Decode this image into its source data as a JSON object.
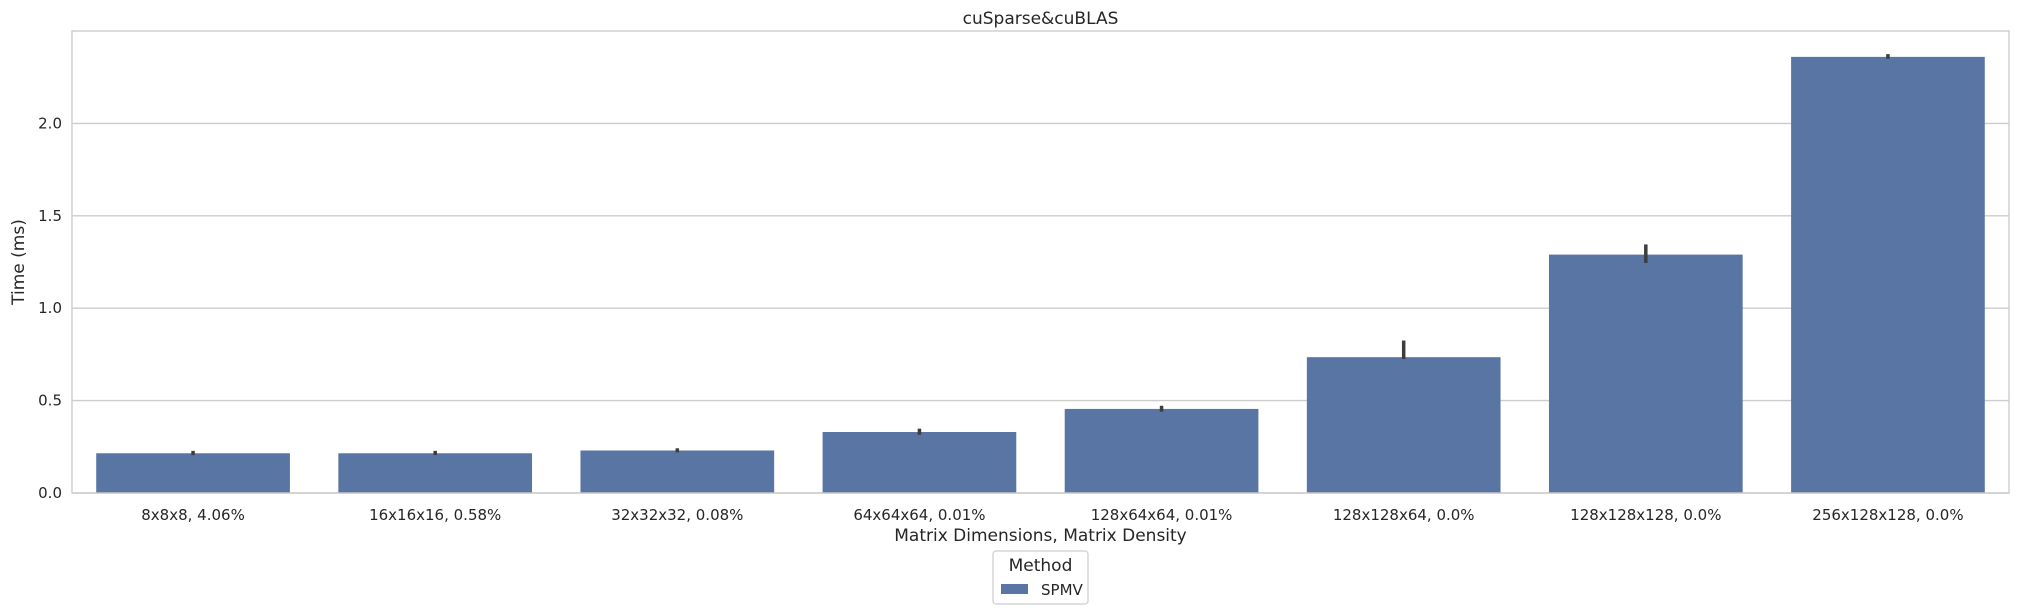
{
  "chart_data": {
    "type": "bar",
    "title": "cuSparse&cuBLAS",
    "xlabel": "Matrix Dimensions, Matrix Density",
    "ylabel": "Time (ms)",
    "ylim": [
      0,
      2.5
    ],
    "yticks": [
      "0.0",
      "0.5",
      "1.0",
      "1.5",
      "2.0"
    ],
    "grid": true,
    "categories": [
      "8x8x8, 4.06%",
      "16x16x16, 0.58%",
      "32x32x32, 0.08%",
      "64x64x64, 0.01%",
      "128x64x64, 0.01%",
      "128x128x64, 0.0%",
      "128x128x128, 0.0%",
      "256x128x128, 0.0%"
    ],
    "series": [
      {
        "name": "SPMV",
        "color": "#5975a4",
        "values": [
          0.215,
          0.215,
          0.23,
          0.33,
          0.455,
          0.735,
          1.29,
          2.36
        ],
        "error_low": [
          0.205,
          0.205,
          0.22,
          0.315,
          0.44,
          0.725,
          1.245,
          2.35
        ],
        "error_high": [
          0.228,
          0.228,
          0.242,
          0.348,
          0.472,
          0.825,
          1.345,
          2.375
        ]
      }
    ],
    "legend": {
      "title": "Method",
      "placement": "bottom-center"
    }
  }
}
